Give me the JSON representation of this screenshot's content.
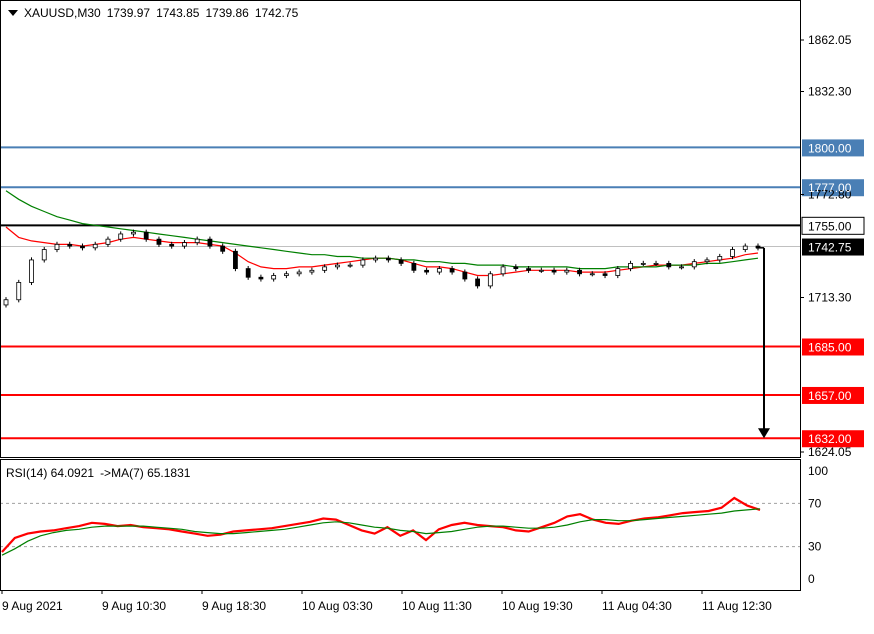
{
  "chart_data": [
    {
      "type": "line",
      "panel": "price",
      "symbol": "XAUUSD,M30",
      "ohlc": {
        "open": "1739.97",
        "high": "1743.85",
        "low": "1739.86",
        "close": "1742.75"
      },
      "y_ticks": [
        "1862.05",
        "1832.30",
        "1772.80",
        "1713.30",
        "1624.05"
      ],
      "ylim": [
        1620,
        1880
      ],
      "current_price": {
        "value": 1742.75,
        "label": "1742.75"
      },
      "levels": [
        {
          "value": 1800,
          "label": "1800.00",
          "color": "#4a7fb5"
        },
        {
          "value": 1777,
          "label": "1777.00",
          "color": "#4a7fb5"
        },
        {
          "value": 1755,
          "label": "1755.00",
          "color": "#000000"
        },
        {
          "value": 1685,
          "label": "1685.00",
          "color": "#ff0000"
        },
        {
          "value": 1657,
          "label": "1657.00",
          "color": "#ff0000"
        },
        {
          "value": 1632,
          "label": "1632.00",
          "color": "#ff0000"
        }
      ],
      "arrow": {
        "from": 1742,
        "to": 1632,
        "direction": "down"
      },
      "series": [
        {
          "name": "",
          "color": "#000000",
          "kind": "close",
          "values": [
            1712,
            1722,
            1735,
            1741,
            1744,
            1743,
            1742,
            1744,
            1747,
            1750,
            1751,
            1747,
            1744,
            1743,
            1745,
            1747,
            1743,
            1740,
            1730,
            1725,
            1724,
            1726,
            1727,
            1728,
            1729,
            1731,
            1732,
            1732,
            1735,
            1736,
            1735,
            1733,
            1729,
            1728,
            1730,
            1728,
            1724,
            1720,
            1727,
            1731,
            1730,
            1729,
            1729,
            1728,
            1729,
            1727,
            1727,
            1726,
            1730,
            1733,
            1733,
            1733,
            1731,
            1731,
            1734,
            1735,
            1737,
            1741,
            1743,
            1742
          ]
        },
        {
          "name": "",
          "color": "#ff0000",
          "kind": "ma-fast",
          "values": [
            1754,
            1748,
            1746,
            1745,
            1744,
            1744,
            1743,
            1744,
            1745,
            1747,
            1748,
            1747,
            1746,
            1745,
            1745,
            1745,
            1744,
            1743,
            1739,
            1734,
            1731,
            1730,
            1730,
            1731,
            1731,
            1732,
            1733,
            1734,
            1735,
            1736,
            1736,
            1735,
            1733,
            1731,
            1731,
            1730,
            1728,
            1726,
            1726,
            1727,
            1728,
            1729,
            1729,
            1729,
            1729,
            1728,
            1728,
            1728,
            1729,
            1730,
            1731,
            1732,
            1732,
            1732,
            1733,
            1734,
            1735,
            1736,
            1738,
            1739
          ]
        },
        {
          "name": "",
          "color": "#008000",
          "kind": "ma-slow",
          "values": [
            1775,
            1770,
            1766,
            1763,
            1760,
            1758,
            1756,
            1755,
            1754,
            1753,
            1752,
            1751,
            1750,
            1749,
            1748,
            1747,
            1746,
            1745,
            1744,
            1743,
            1742,
            1741,
            1740,
            1739,
            1738,
            1738,
            1737,
            1737,
            1736,
            1736,
            1736,
            1735,
            1735,
            1734,
            1734,
            1733,
            1733,
            1732,
            1732,
            1732,
            1731,
            1731,
            1731,
            1731,
            1731,
            1730,
            1730,
            1730,
            1731,
            1731,
            1731,
            1731,
            1732,
            1732,
            1732,
            1733,
            1733,
            1734,
            1735,
            1736
          ]
        }
      ]
    },
    {
      "type": "line",
      "panel": "rsi",
      "label": "RSI(14) 64.0921",
      "ma_label": "->MA(7) 65.1831",
      "y_ticks": [
        "100",
        "70",
        "30",
        "0"
      ],
      "ylim": [
        0,
        100
      ],
      "levels": [
        70,
        30
      ],
      "series": [
        {
          "name": "RSI(14)",
          "color": "#ff0000",
          "values": [
            25,
            38,
            42,
            44,
            45,
            47,
            49,
            52,
            51,
            49,
            50,
            48,
            47,
            46,
            44,
            42,
            40,
            41,
            44,
            45,
            46,
            47,
            49,
            51,
            53,
            56,
            55,
            50,
            45,
            42,
            48,
            40,
            45,
            36,
            46,
            50,
            52,
            50,
            49,
            48,
            45,
            44,
            48,
            52,
            58,
            60,
            55,
            52,
            51,
            54,
            56,
            57,
            59,
            61,
            62,
            63,
            66,
            75,
            68,
            64
          ]
        },
        {
          "name": "MA(7)",
          "color": "#008000",
          "values": [
            22,
            28,
            35,
            40,
            43,
            45,
            46,
            48,
            49,
            49,
            49,
            49,
            48,
            47,
            46,
            44,
            43,
            42,
            42,
            43,
            44,
            45,
            46,
            48,
            50,
            52,
            53,
            52,
            50,
            48,
            47,
            45,
            44,
            42,
            43,
            44,
            46,
            48,
            49,
            49,
            48,
            47,
            47,
            48,
            50,
            53,
            55,
            55,
            54,
            54,
            55,
            56,
            57,
            58,
            59,
            60,
            61,
            63,
            64,
            65
          ]
        }
      ],
      "x_labels": [
        "9 Aug 2021",
        "9 Aug 10:30",
        "9 Aug 18:30",
        "10 Aug 03:30",
        "10 Aug 11:30",
        "10 Aug 19:30",
        "11 Aug 04:30",
        "11 Aug 12:30"
      ]
    }
  ]
}
